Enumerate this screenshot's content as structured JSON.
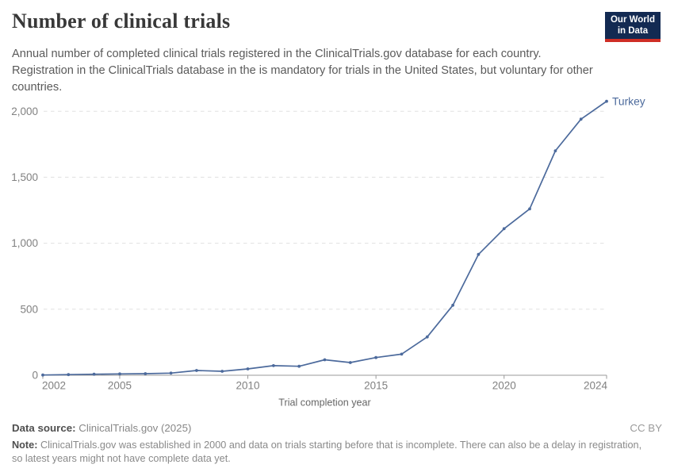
{
  "header": {
    "title": "Number of clinical trials",
    "subtitle": "Annual number of completed clinical trials registered in the ClinicalTrials.gov database for each country. Registration in the ClinicalTrials database in the is mandatory for trials in the United States, but voluntary for other countries."
  },
  "logo": {
    "line1": "Our World",
    "line2": "in Data"
  },
  "chart_data": {
    "type": "line",
    "title": "Number of clinical trials",
    "xlabel": "Trial completion year",
    "ylabel": "",
    "x": [
      2002,
      2003,
      2004,
      2005,
      2006,
      2007,
      2008,
      2009,
      2010,
      2011,
      2012,
      2013,
      2014,
      2015,
      2016,
      2017,
      2018,
      2019,
      2020,
      2021,
      2022,
      2023,
      2024
    ],
    "series": [
      {
        "name": "Turkey",
        "color": "#4c6a9c",
        "values": [
          2,
          5,
          8,
          10,
          12,
          16,
          36,
          30,
          48,
          73,
          68,
          117,
          96,
          134,
          160,
          290,
          530,
          915,
          1110,
          1260,
          1700,
          1940,
          2075
        ]
      }
    ],
    "xticks": [
      2002,
      2005,
      2010,
      2015,
      2020,
      2024
    ],
    "yticks": [
      0,
      500,
      1000,
      1500,
      2000
    ],
    "xlim": [
      2002,
      2024
    ],
    "ylim": [
      0,
      2100
    ],
    "grid": "horizontal-dashed",
    "legend": "end-of-line-label",
    "colors": {
      "grid": "#e0e0e0",
      "axis": "#999999",
      "tick_label": "#818181",
      "axis_title": "#666666"
    }
  },
  "footer": {
    "source_label": "Data source:",
    "source_value": "ClinicalTrials.gov (2025)",
    "license": "CC BY",
    "note_label": "Note:",
    "note_value": "ClinicalTrials.gov was established in 2000 and data on trials starting before that is incomplete. There can also be a delay in registration, so latest years might not have complete data yet."
  }
}
